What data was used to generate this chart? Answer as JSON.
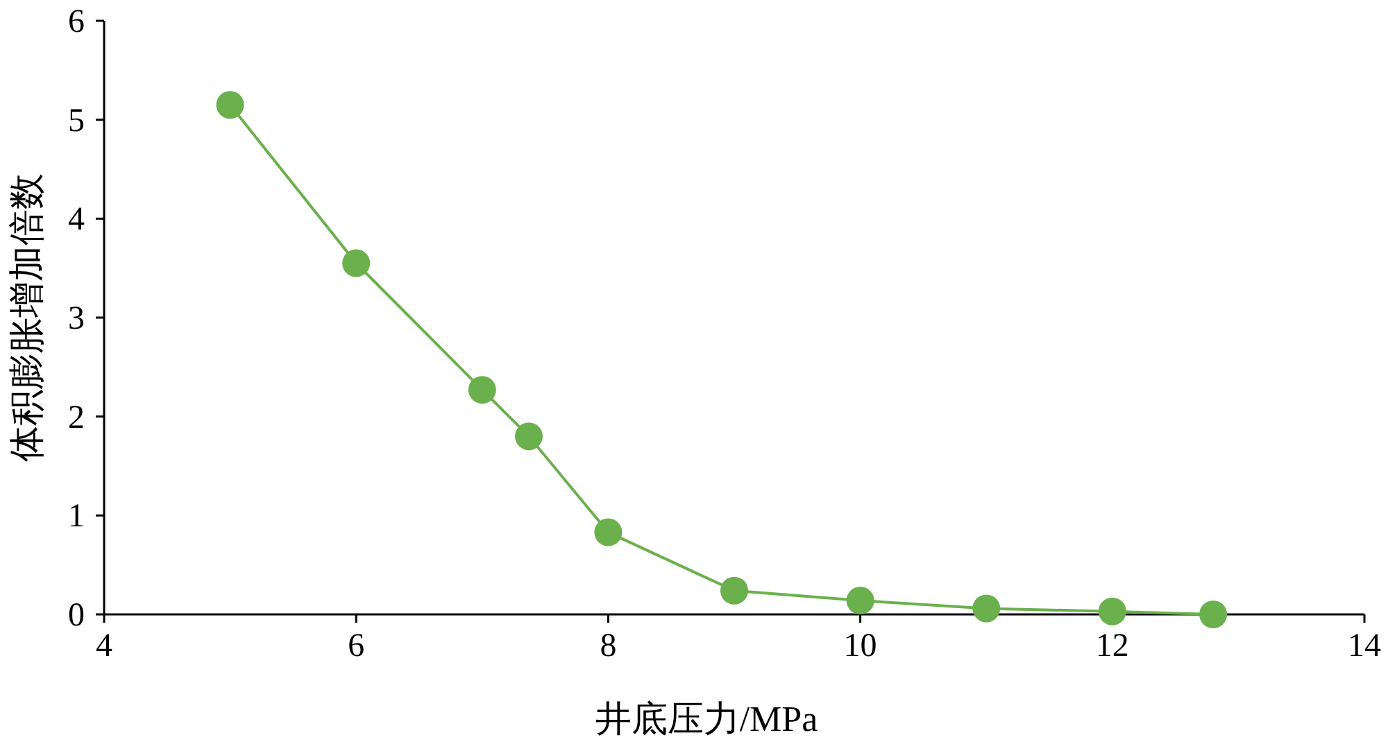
{
  "chart_data": {
    "type": "line",
    "xlabel": "井底压力/MPa",
    "ylabel": "体积膨胀增加倍数",
    "x": [
      5,
      6,
      7,
      7.37,
      8,
      9,
      10,
      11,
      12,
      12.8
    ],
    "values": [
      5.15,
      3.55,
      2.27,
      1.8,
      0.83,
      0.24,
      0.14,
      0.06,
      0.03,
      0
    ],
    "color": "#6ab04c",
    "marker": "circle",
    "xlim": [
      4,
      14
    ],
    "ylim": [
      0,
      6
    ],
    "xticks": [
      4,
      6,
      8,
      10,
      12,
      14
    ],
    "yticks": [
      0,
      1,
      2,
      3,
      4,
      5,
      6
    ]
  }
}
